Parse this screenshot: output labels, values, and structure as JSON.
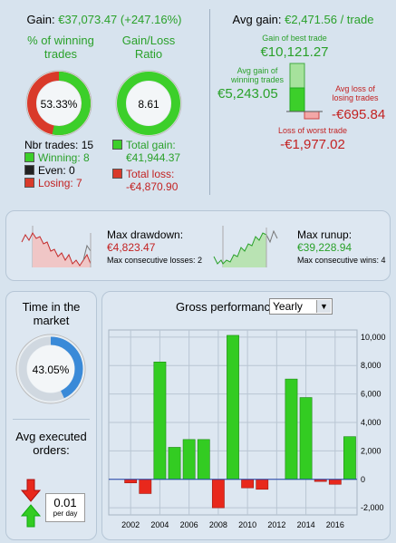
{
  "summary": {
    "gain_label": "Gain:",
    "gain_value": "€37,073.47 (+247.16%)",
    "pct_winning_title": "% of winning trades",
    "pct_winning_value": "53.33%",
    "pct_winning_fraction": 0.5333,
    "gain_loss_title": "Gain/Loss Ratio",
    "gain_loss_value": "8.61",
    "nbr_trades": "Nbr trades: 15",
    "winning": "Winning: 8",
    "even": "Even: 0",
    "losing": "Losing: 7",
    "total_gain_label": "Total gain:",
    "total_gain_value": "€41,944.37",
    "total_loss_label": "Total loss:",
    "total_loss_value": "-€4,870.90"
  },
  "avg": {
    "avg_gain_label": "Avg gain:",
    "avg_gain_value": "€2,471.56 / trade",
    "best_label": "Gain of best trade",
    "best_value": "€10,121.27",
    "avg_win_label": "Avg gain of winning trades",
    "avg_win_value": "€5,243.05",
    "avg_loss_label": "Avg loss of losing trades",
    "avg_loss_value": "-€695.84",
    "worst_label": "Loss of worst trade",
    "worst_value": "-€1,977.02"
  },
  "drawdown": {
    "label": "Max drawdown:",
    "value": "€4,823.47",
    "sub": "Max consecutive losses: 2"
  },
  "runup": {
    "label": "Max runup:",
    "value": "€39,228.94",
    "sub": "Max consecutive wins: 4"
  },
  "market": {
    "title": "Time in the market",
    "value": "43.05%",
    "fraction": 0.4305
  },
  "orders": {
    "title": "Avg executed orders:",
    "value": "0.01",
    "unit": "per day"
  },
  "perf": {
    "label": "Gross performance",
    "period": "Yearly"
  },
  "colors": {
    "green": "#2aa12a",
    "red": "#c32222",
    "bar_green": "#33cc22",
    "bar_red": "#e8281c"
  },
  "chart_data": {
    "type": "bar",
    "x": [
      2001,
      2002,
      2003,
      2004,
      2005,
      2006,
      2007,
      2008,
      2009,
      2010,
      2011,
      2012,
      2013,
      2014,
      2015,
      2016,
      2017
    ],
    "values": [
      0,
      -250,
      -1000,
      8250,
      2250,
      2800,
      2800,
      -2000,
      10121,
      -600,
      -700,
      0,
      7050,
      5750,
      -150,
      -350,
      3000
    ],
    "x_ticks": [
      "2002",
      "2004",
      "2006",
      "2008",
      "2010",
      "2012",
      "2014",
      "2016"
    ],
    "y_ticks": [
      "10,000",
      "8,000",
      "6,000",
      "4,000",
      "2,000",
      "0",
      "-2,000"
    ],
    "ylim": [
      -2500,
      10500
    ],
    "grid": true
  }
}
